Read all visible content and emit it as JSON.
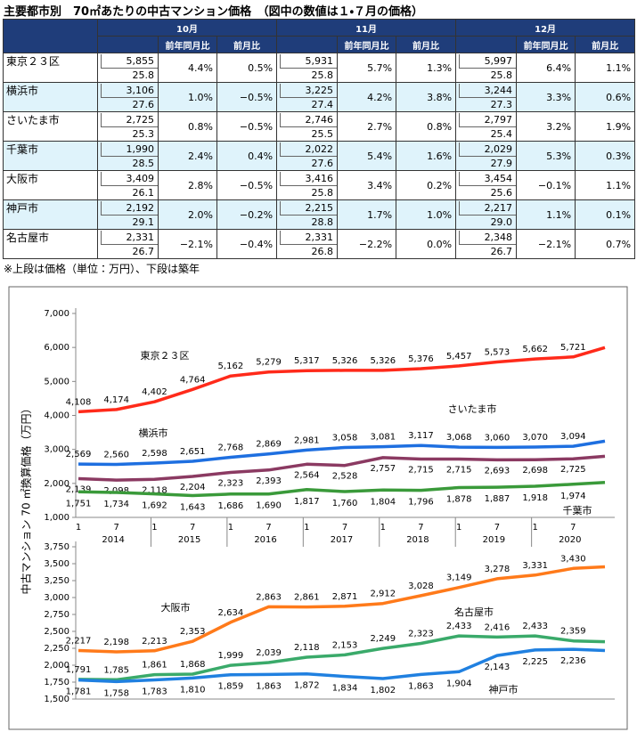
{
  "header": {
    "title": "主要都市別　70㎡あたりの中古マンション価格　（図中の数値は１・７月の価格）"
  },
  "table": {
    "months": [
      "10月",
      "11月",
      "12月"
    ],
    "subheaders": [
      "前年同月比",
      "前月比"
    ],
    "rows": [
      {
        "city": "東京２３区",
        "cells": [
          [
            "5,855",
            "25.8",
            "4.4%",
            "0.5%"
          ],
          [
            "5,931",
            "25.8",
            "5.7%",
            "1.3%"
          ],
          [
            "5,997",
            "25.8",
            "6.4%",
            "1.1%"
          ]
        ]
      },
      {
        "city": "横浜市",
        "cells": [
          [
            "3,106",
            "27.6",
            "1.0%",
            "−0.5%"
          ],
          [
            "3,225",
            "27.4",
            "4.2%",
            "3.8%"
          ],
          [
            "3,244",
            "27.3",
            "3.3%",
            "0.6%"
          ]
        ]
      },
      {
        "city": "さいたま市",
        "cells": [
          [
            "2,725",
            "25.3",
            "0.8%",
            "−0.5%"
          ],
          [
            "2,746",
            "25.5",
            "2.7%",
            "0.8%"
          ],
          [
            "2,797",
            "25.4",
            "3.2%",
            "1.9%"
          ]
        ]
      },
      {
        "city": "千葉市",
        "cells": [
          [
            "1,990",
            "28.5",
            "2.4%",
            "0.4%"
          ],
          [
            "2,022",
            "27.6",
            "5.4%",
            "1.6%"
          ],
          [
            "2,029",
            "27.9",
            "5.3%",
            "0.3%"
          ]
        ]
      },
      {
        "city": "大阪市",
        "cells": [
          [
            "3,409",
            "26.1",
            "2.8%",
            "−0.5%"
          ],
          [
            "3,416",
            "25.8",
            "3.4%",
            "0.2%"
          ],
          [
            "3,454",
            "25.6",
            "−0.1%",
            "1.1%"
          ]
        ]
      },
      {
        "city": "神戸市",
        "cells": [
          [
            "2,192",
            "29.1",
            "2.0%",
            "−0.2%"
          ],
          [
            "2,215",
            "28.8",
            "1.7%",
            "1.0%"
          ],
          [
            "2,217",
            "29.0",
            "1.1%",
            "0.1%"
          ]
        ]
      },
      {
        "city": "名古屋市",
        "cells": [
          [
            "2,331",
            "26.7",
            "−2.1%",
            "−0.4%"
          ],
          [
            "2,331",
            "26.8",
            "−2.2%",
            "0.0%"
          ],
          [
            "2,348",
            "26.7",
            "−2.1%",
            "0.7%"
          ]
        ]
      }
    ]
  },
  "note": "※上段は価格（単位：万円）、下段は築年",
  "chart_data": [
    {
      "type": "line",
      "ylabel": "中古マンション 70 ㎡換算価格（万円）",
      "categories": [
        "1",
        "7",
        "1",
        "7",
        "1",
        "7",
        "1",
        "7",
        "1",
        "7",
        "1",
        "7",
        "1",
        "7",
        null
      ],
      "x_groups": [
        "2014",
        "2015",
        "2016",
        "2017",
        "2018",
        "2019",
        "2020"
      ],
      "ylim": [
        1000,
        7000
      ],
      "yticks": [
        {
          "value": 1000,
          "label": "1,000"
        },
        {
          "value": 2000,
          "label": "2,000"
        },
        {
          "value": 3000,
          "label": "3,000"
        },
        {
          "value": 4000,
          "label": "4,000"
        },
        {
          "value": 5000,
          "label": "5,000"
        },
        {
          "value": 6000,
          "label": "6,000"
        },
        {
          "value": 7000,
          "label": "7,000"
        }
      ],
      "series": [
        {
          "name": "東京２３区",
          "color": "#ff2a1a",
          "values": [
            4108,
            4174,
            4402,
            4764,
            5162,
            5279,
            5317,
            5326,
            5326,
            5376,
            5457,
            5573,
            5662,
            5721,
            5997
          ],
          "value_labels": [
            "4,108",
            "4,174",
            "4,402",
            "4,764",
            "5,162",
            "5,279",
            "5,317",
            "5,326",
            "5,326",
            "5,376",
            "5,457",
            "5,573",
            "5,662",
            "5,721",
            null
          ]
        },
        {
          "name": "横浜市",
          "color": "#1e6fe0",
          "values": [
            2569,
            2560,
            2598,
            2651,
            2768,
            2869,
            2981,
            3058,
            3081,
            3117,
            3068,
            3060,
            3070,
            3094,
            3244
          ],
          "value_labels": [
            "2,569",
            "2,560",
            "2,598",
            "2,651",
            "2,768",
            "2,869",
            "2,981",
            "3,058",
            "3,081",
            "3,117",
            "3,068",
            "3,060",
            "3,070",
            "3,094",
            null
          ]
        },
        {
          "name": "さいたま市",
          "color": "#8b3a62",
          "values": [
            2139,
            2098,
            2118,
            2204,
            2323,
            2393,
            2564,
            2528,
            2757,
            2715,
            2715,
            2693,
            2698,
            2725,
            2797
          ],
          "value_labels": [
            "2,139",
            "2,098",
            "2,118",
            "2,204",
            "2,323",
            "2,393",
            "2,564",
            "2,528",
            "2,757",
            "2,715",
            "2,715",
            "2,693",
            "2,698",
            "2,725",
            null
          ]
        },
        {
          "name": "千葉市",
          "color": "#3a9a3a",
          "values": [
            1751,
            1734,
            1692,
            1643,
            1686,
            1690,
            1817,
            1760,
            1804,
            1796,
            1878,
            1887,
            1918,
            1974,
            2029
          ],
          "value_labels": [
            "1,751",
            "1,734",
            "1,692",
            "1,643",
            "1,686",
            "1,690",
            "1,817",
            "1,760",
            "1,804",
            "1,796",
            "1,878",
            "1,887",
            "1,918",
            "1,974",
            null
          ]
        }
      ]
    },
    {
      "type": "line",
      "ylim": [
        1500,
        3750
      ],
      "yticks": [
        {
          "value": 1500,
          "label": "1,500"
        },
        {
          "value": 1750,
          "label": "1,750"
        },
        {
          "value": 2000,
          "label": "2,000"
        },
        {
          "value": 2250,
          "label": "2,250"
        },
        {
          "value": 2500,
          "label": "2,500"
        },
        {
          "value": 2750,
          "label": "2,750"
        },
        {
          "value": 3000,
          "label": "3,000"
        },
        {
          "value": 3250,
          "label": "3,250"
        },
        {
          "value": 3500,
          "label": "3,500"
        },
        {
          "value": 3750,
          "label": "3,750"
        }
      ],
      "series": [
        {
          "name": "大阪市",
          "color": "#ff7a1a",
          "values": [
            2217,
            2198,
            2213,
            2353,
            2634,
            2863,
            2861,
            2871,
            2912,
            3028,
            3149,
            3278,
            3331,
            3430,
            3454
          ],
          "value_labels": [
            "2,217",
            "2,198",
            "2,213",
            "2,353",
            "2,634",
            "2,863",
            "2,861",
            "2,871",
            "2,912",
            "3,028",
            "3,149",
            "3,278",
            "3,331",
            "3,430",
            null
          ]
        },
        {
          "name": "名古屋市",
          "color": "#3aaa6a",
          "values": [
            1791,
            1785,
            1861,
            1868,
            1999,
            2039,
            2118,
            2153,
            2249,
            2323,
            2433,
            2416,
            2433,
            2359,
            2348
          ],
          "value_labels": [
            "1,791",
            "1,785",
            "1,861",
            "1,868",
            "1,999",
            "2,039",
            "2,118",
            "2,153",
            "2,249",
            "2,323",
            "2,433",
            "2,416",
            "2,433",
            "2,359",
            null
          ]
        },
        {
          "name": "神戸市",
          "color": "#2080e0",
          "values": [
            1781,
            1758,
            1783,
            1810,
            1859,
            1863,
            1872,
            1834,
            1802,
            1863,
            1904,
            2143,
            2225,
            2236,
            2217
          ],
          "value_labels": [
            "1,781",
            "1,758",
            "1,783",
            "1,810",
            "1,859",
            "1,863",
            "1,872",
            "1,834",
            "1,802",
            "1,863",
            "1,904",
            "2,143",
            "2,225",
            "2,236",
            null
          ]
        }
      ]
    }
  ]
}
